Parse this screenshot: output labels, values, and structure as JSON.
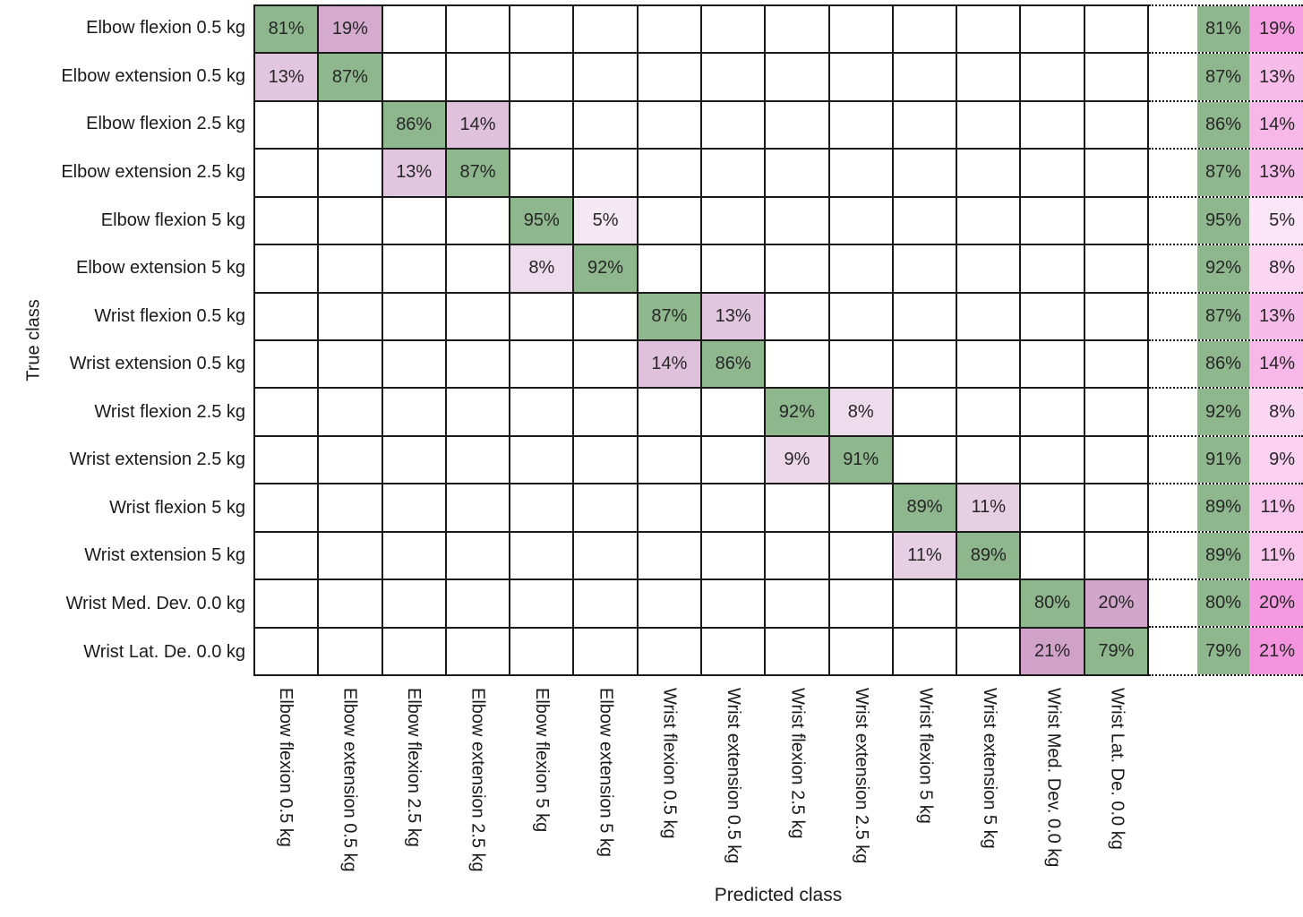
{
  "chart_data": {
    "type": "heatmap",
    "subtype": "confusion-matrix-row-normalized",
    "xlabel": "Predicted class",
    "ylabel": "True class",
    "value_suffix": "%",
    "classes": [
      "Elbow flexion 0.5 kg",
      "Elbow extension 0.5 kg",
      "Elbow flexion 2.5 kg",
      "Elbow extension 2.5 kg",
      "Elbow flexion 5 kg",
      "Elbow extension 5 kg",
      "Wrist flexion 0.5 kg",
      "Wrist extension 0.5 kg",
      "Wrist flexion 2.5 kg",
      "Wrist extension 2.5 kg",
      "Wrist flexion 5 kg",
      "Wrist extension 5 kg",
      "Wrist Med. Dev. 0.0 kg",
      "Wrist Lat. De. 0.0 kg"
    ],
    "cells": [
      {
        "row": 0,
        "col": 0,
        "value": 81
      },
      {
        "row": 0,
        "col": 1,
        "value": 19
      },
      {
        "row": 1,
        "col": 0,
        "value": 13
      },
      {
        "row": 1,
        "col": 1,
        "value": 87
      },
      {
        "row": 2,
        "col": 2,
        "value": 86
      },
      {
        "row": 2,
        "col": 3,
        "value": 14
      },
      {
        "row": 3,
        "col": 2,
        "value": 13
      },
      {
        "row": 3,
        "col": 3,
        "value": 87
      },
      {
        "row": 4,
        "col": 4,
        "value": 95
      },
      {
        "row": 4,
        "col": 5,
        "value": 5
      },
      {
        "row": 5,
        "col": 4,
        "value": 8
      },
      {
        "row": 5,
        "col": 5,
        "value": 92
      },
      {
        "row": 6,
        "col": 6,
        "value": 87
      },
      {
        "row": 6,
        "col": 7,
        "value": 13
      },
      {
        "row": 7,
        "col": 6,
        "value": 14
      },
      {
        "row": 7,
        "col": 7,
        "value": 86
      },
      {
        "row": 8,
        "col": 8,
        "value": 92
      },
      {
        "row": 8,
        "col": 9,
        "value": 8
      },
      {
        "row": 9,
        "col": 8,
        "value": 9
      },
      {
        "row": 9,
        "col": 9,
        "value": 91
      },
      {
        "row": 10,
        "col": 10,
        "value": 89
      },
      {
        "row": 10,
        "col": 11,
        "value": 11
      },
      {
        "row": 11,
        "col": 10,
        "value": 11
      },
      {
        "row": 11,
        "col": 11,
        "value": 89
      },
      {
        "row": 12,
        "col": 12,
        "value": 80
      },
      {
        "row": 12,
        "col": 13,
        "value": 20
      },
      {
        "row": 13,
        "col": 12,
        "value": 21
      },
      {
        "row": 13,
        "col": 13,
        "value": 79
      }
    ],
    "row_summary": {
      "correct": [
        81,
        87,
        86,
        87,
        95,
        92,
        87,
        86,
        92,
        91,
        89,
        89,
        80,
        79
      ],
      "incorrect": [
        19,
        13,
        14,
        13,
        5,
        8,
        13,
        14,
        8,
        9,
        11,
        11,
        20,
        21
      ]
    },
    "colors": {
      "diagonal_green": "#8fb78e",
      "matrix_pink_base": "#c083b8",
      "summary_green": "#8fb78e",
      "summary_pink_base": "#f27fd8",
      "grid_line": "#1a1a1a",
      "dotted_line": "#111111",
      "cell_text": "#262626",
      "label_text": "#1a1a1a"
    },
    "layout": {
      "grid_on": true,
      "row_summary_position": "right",
      "column_labels_rotated": true
    }
  }
}
